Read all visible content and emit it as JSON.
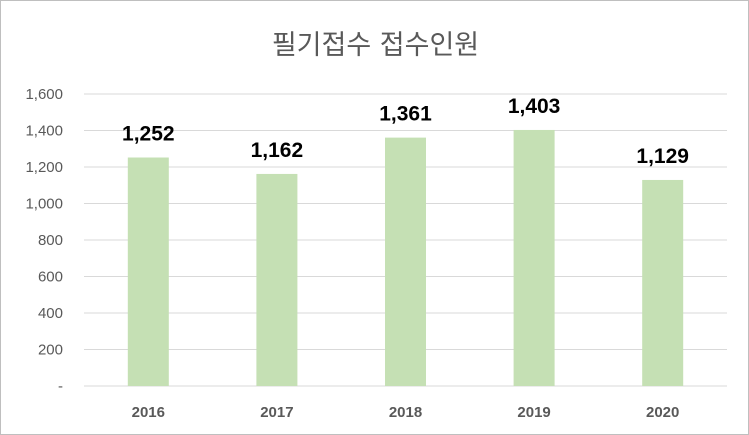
{
  "chart_data": {
    "type": "bar",
    "title": "필기접수 접수인원",
    "xlabel": "",
    "ylabel": "",
    "categories": [
      "2016",
      "2017",
      "2018",
      "2019",
      "2020"
    ],
    "values": [
      1252,
      1162,
      1361,
      1403,
      1129
    ],
    "data_labels": [
      "1,252",
      "1,162",
      "1,361",
      "1,403",
      "1,129"
    ],
    "y_ticks": [
      0,
      200,
      400,
      600,
      800,
      1000,
      1200,
      1400,
      1600
    ],
    "y_tick_labels": [
      "-",
      "200",
      "400",
      "600",
      "800",
      "1,000",
      "1,200",
      "1,400",
      "1,600"
    ],
    "ylim": [
      0,
      1600
    ],
    "grid": true,
    "legend": "none",
    "colors": {
      "bar": "#c5e0b4",
      "grid": "#d9d9d9",
      "axis_text": "#595959",
      "label_text": "#000000"
    }
  }
}
